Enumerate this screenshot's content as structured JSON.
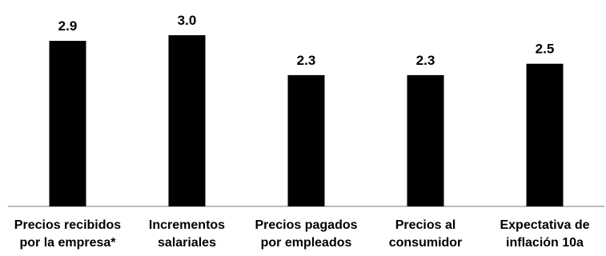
{
  "chart_data": {
    "type": "bar",
    "categories": [
      [
        "Precios recibidos",
        "por la empresa*"
      ],
      [
        "Incrementos",
        "salariales"
      ],
      [
        "Precios pagados",
        "por empleados"
      ],
      [
        "Precios al",
        "consumidor"
      ],
      [
        "Expectativa de",
        "inflación 10a"
      ]
    ],
    "values": [
      2.9,
      3.0,
      2.3,
      2.3,
      2.5
    ],
    "value_labels": [
      "2.9",
      "3.0",
      "2.3",
      "2.3",
      "2.5"
    ],
    "title": "",
    "xlabel": "",
    "ylabel": "",
    "ylim": [
      0,
      3.0
    ],
    "grid": false,
    "legend": "none",
    "bar_color": "#000000",
    "axis_color": "#a6a6a6"
  }
}
